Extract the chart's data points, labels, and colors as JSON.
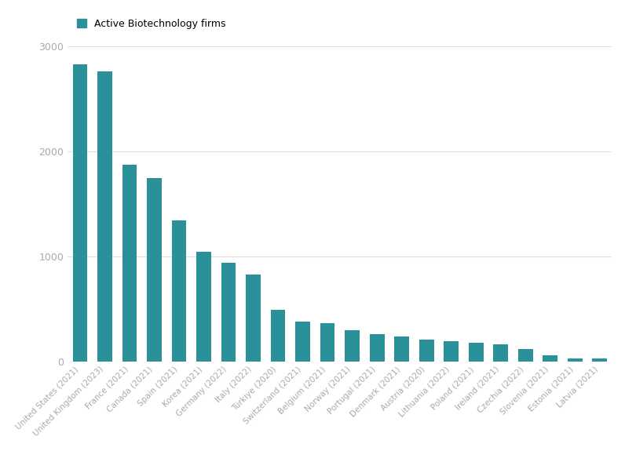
{
  "categories": [
    "United States (2021)",
    "United Kingdom (2023)",
    "France (2021)",
    "Canada (2021)",
    "Spain (2021)",
    "Korea (2021)",
    "Germany (2022)",
    "Italy (2022)",
    "Türkiye (2020)",
    "Switzerland (2021)",
    "Belgium (2021)",
    "Norway (2021)",
    "Portugal (2021)",
    "Denmark (2021)",
    "Austria (2020)",
    "Lithuania (2022)",
    "Poland (2021)",
    "Ireland (2021)",
    "Czechia (2022)",
    "Slovenia (2021)",
    "Estonia (2021)",
    "Latvia (2021)"
  ],
  "values": [
    2830,
    2765,
    1870,
    1745,
    1340,
    1045,
    940,
    830,
    490,
    380,
    360,
    295,
    260,
    235,
    210,
    190,
    180,
    160,
    120,
    55,
    30,
    25
  ],
  "bar_color": "#2a9099",
  "legend_label": "Active Biotechnology firms",
  "legend_color": "#2a9099",
  "background_color": "#ffffff",
  "ytick_values": [
    0,
    1000,
    2000,
    3000
  ],
  "ylim": [
    0,
    3100
  ],
  "grid_color": "#e0e0e0",
  "tick_label_color": "#aaaaaa",
  "axis_label_color": "#aaaaaa"
}
